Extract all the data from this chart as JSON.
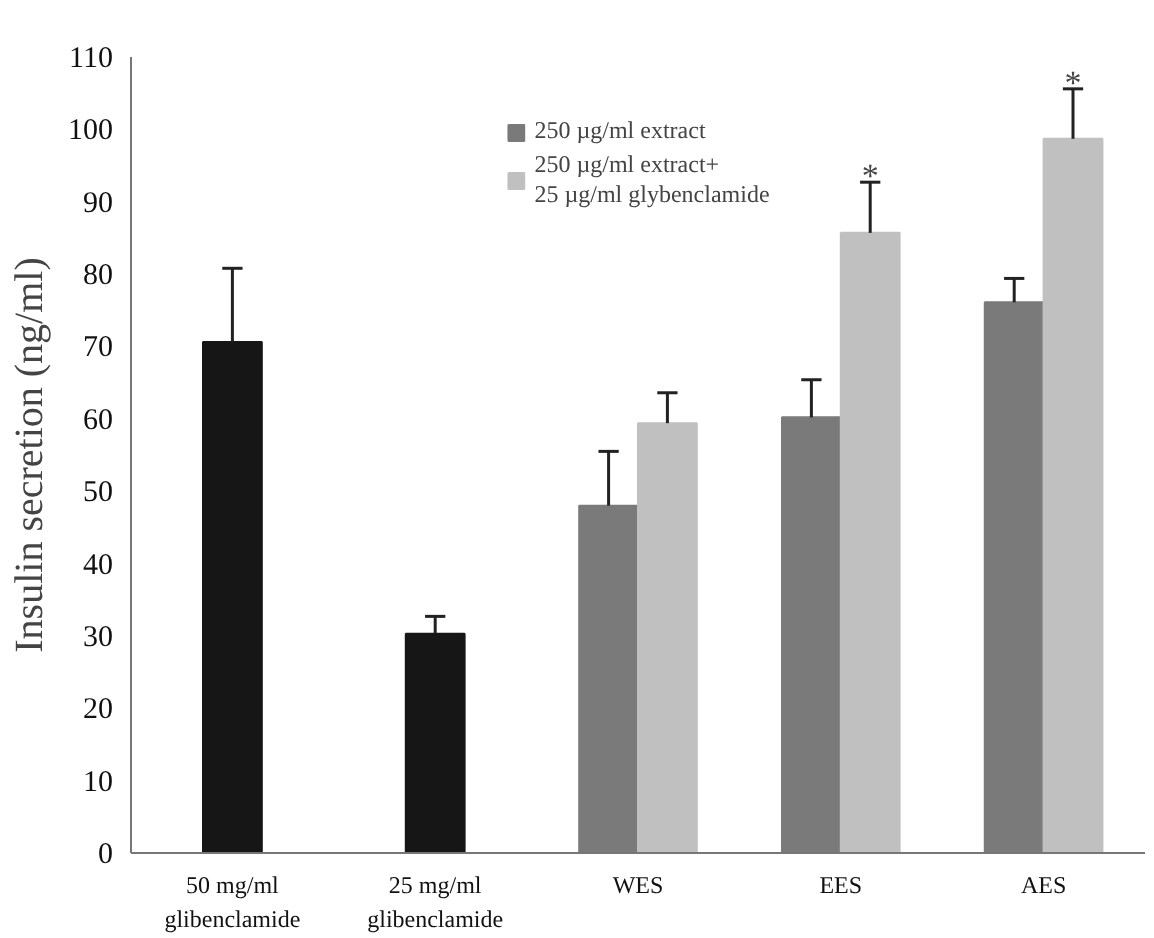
{
  "chart_data": {
    "type": "bar",
    "ylabel": "Insulin secretion (ng/ml)",
    "categories": [
      "50 mg/ml\nglibenclamide",
      "25 mg/ml\nglibenclamide",
      "WES",
      "EES",
      "AES"
    ],
    "series": [
      {
        "color": "#161616",
        "values": [
          70.6,
          30.3,
          null,
          null,
          null
        ],
        "errors": [
          [
            70.6,
            80.8
          ],
          [
            30.3,
            32.7
          ],
          null,
          null,
          null
        ]
      },
      {
        "name": "250 µg/ml extract",
        "color": "#7a7a7a",
        "values": [
          null,
          null,
          48.0,
          60.2,
          76.1
        ],
        "errors": [
          null,
          null,
          [
            48.0,
            55.5
          ],
          [
            60.2,
            65.4
          ],
          [
            76.1,
            79.4
          ]
        ]
      },
      {
        "name": "250 µg/ml extract+\n25 µg/ml glybenclamide",
        "color": "#c0c0c0",
        "values": [
          null,
          null,
          59.4,
          85.7,
          98.7
        ],
        "errors": [
          null,
          null,
          [
            59.4,
            63.6
          ],
          [
            85.7,
            92.7
          ],
          [
            98.7,
            105.6
          ]
        ]
      }
    ],
    "ylim": [
      0,
      110
    ],
    "yticks": [
      0,
      10,
      20,
      30,
      40,
      50,
      60,
      70,
      80,
      90,
      100,
      110
    ],
    "annotations": [
      {
        "text": "*",
        "x": "EES",
        "y": 85.7
      },
      {
        "text": "*",
        "x": "AES",
        "y": 98.7
      }
    ],
    "legend": "top",
    "grid": false
  }
}
